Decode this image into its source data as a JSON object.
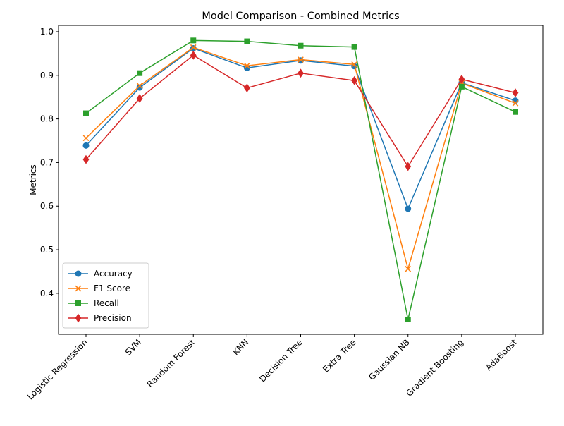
{
  "chart_data": {
    "type": "line",
    "title": "Model Comparison - Combined Metrics",
    "xlabel": "",
    "ylabel": "Metrics",
    "categories": [
      "Logistic Regression",
      "SVM",
      "Random Forest",
      "KNN",
      "Decision Tree",
      "Extra Tree",
      "Gaussian NB",
      "Gradient Boosting",
      "AdaBoost"
    ],
    "yticks": [
      "0.4",
      "0.5",
      "0.6",
      "0.7",
      "0.8",
      "0.9",
      "1.0"
    ],
    "ylim": [
      0.306,
      1.0145
    ],
    "grid": false,
    "legend_position": "lower-left",
    "series": [
      {
        "name": "Accuracy",
        "color": "#1f77b4",
        "marker": "circle",
        "values": [
          0.739,
          0.872,
          0.962,
          0.917,
          0.934,
          0.921,
          0.594,
          0.883,
          0.842
        ]
      },
      {
        "name": "F1 Score",
        "color": "#ff7f0e",
        "marker": "x",
        "values": [
          0.756,
          0.876,
          0.964,
          0.922,
          0.936,
          0.925,
          0.456,
          0.882,
          0.836
        ]
      },
      {
        "name": "Recall",
        "color": "#2ca02c",
        "marker": "square",
        "values": [
          0.813,
          0.905,
          0.98,
          0.978,
          0.968,
          0.965,
          0.34,
          0.874,
          0.816
        ]
      },
      {
        "name": "Precision",
        "color": "#d62728",
        "marker": "diamond",
        "values": [
          0.707,
          0.847,
          0.946,
          0.871,
          0.905,
          0.888,
          0.691,
          0.891,
          0.86
        ]
      }
    ]
  }
}
